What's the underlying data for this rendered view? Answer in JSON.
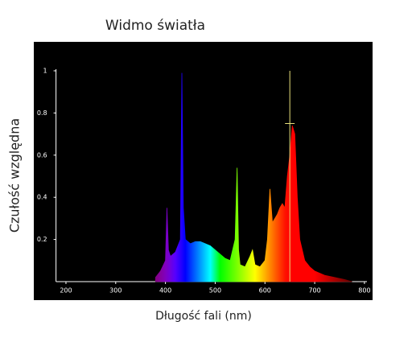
{
  "chart_data": {
    "type": "area",
    "title": "Widmo światła",
    "xlabel": "Długość fali (nm)",
    "ylabel": "Czułość względna",
    "x": [
      380,
      390,
      400,
      403,
      406,
      410,
      420,
      430,
      433,
      436,
      440,
      450,
      460,
      470,
      480,
      490,
      500,
      510,
      520,
      530,
      540,
      544,
      547,
      550,
      560,
      570,
      575,
      580,
      590,
      600,
      605,
      610,
      615,
      620,
      625,
      630,
      635,
      640,
      645,
      650,
      655,
      660,
      665,
      670,
      680,
      690,
      700,
      720,
      740,
      760,
      775
    ],
    "values": [
      0.02,
      0.05,
      0.1,
      0.35,
      0.15,
      0.12,
      0.14,
      0.2,
      0.99,
      0.35,
      0.2,
      0.18,
      0.19,
      0.19,
      0.18,
      0.17,
      0.15,
      0.13,
      0.11,
      0.1,
      0.2,
      0.54,
      0.15,
      0.08,
      0.07,
      0.12,
      0.15,
      0.08,
      0.07,
      0.1,
      0.2,
      0.44,
      0.28,
      0.3,
      0.32,
      0.35,
      0.37,
      0.35,
      0.5,
      0.6,
      0.74,
      0.7,
      0.4,
      0.2,
      0.1,
      0.07,
      0.05,
      0.03,
      0.02,
      0.01,
      0
    ],
    "cursor": {
      "x": 650,
      "y": 0.75
    },
    "xlim": [
      180,
      805
    ],
    "ylim": [
      0,
      1
    ],
    "xticks": [
      200,
      300,
      400,
      500,
      600,
      700,
      800
    ],
    "yticks": [
      0.2,
      0.4,
      0.6,
      0.8,
      1
    ],
    "background": "#000000",
    "cursor_color": "#e8e07a"
  }
}
